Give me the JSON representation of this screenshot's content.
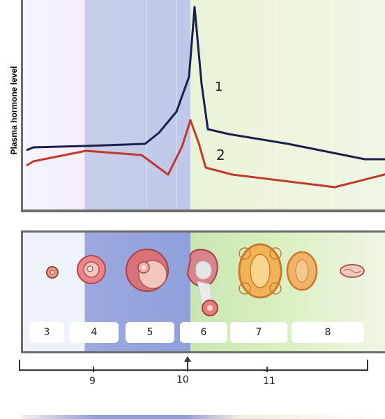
{
  "y_axis_label": "Plasma hormone level",
  "curve_labels": [
    "1",
    "2"
  ],
  "stage_labels": [
    "3",
    "4",
    "5",
    "6",
    "7",
    "8"
  ],
  "bracket_labels": [
    "9",
    "10",
    "11"
  ],
  "colors": {
    "curve_1": "#1a1f4f",
    "curve_2": "#c0392b"
  },
  "chart_data": {
    "type": "line",
    "ylabel": "Plasma hormone level",
    "series": [
      {
        "name": "1",
        "shape": "low plateau, sharp mid-cycle surge, high decline then gradual fall"
      },
      {
        "name": "2",
        "shape": "low plateau, slight dip, small surge, decline, low with late rise"
      }
    ]
  }
}
